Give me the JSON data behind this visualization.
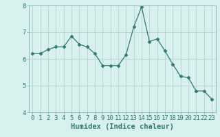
{
  "x": [
    0,
    1,
    2,
    3,
    4,
    5,
    6,
    7,
    8,
    9,
    10,
    11,
    12,
    13,
    14,
    15,
    16,
    17,
    18,
    19,
    20,
    21,
    22,
    23
  ],
  "y": [
    6.2,
    6.2,
    6.35,
    6.45,
    6.45,
    6.85,
    6.55,
    6.45,
    6.2,
    5.75,
    5.75,
    5.75,
    6.15,
    7.2,
    7.95,
    6.65,
    6.75,
    6.3,
    5.8,
    5.35,
    5.3,
    4.8,
    4.8,
    4.5
  ],
  "line_color": "#2d7b6f",
  "marker": "D",
  "marker_size": 2.5,
  "bg_color": "#d8f0ee",
  "grid_color": "#b8d8d4",
  "xlabel": "Humidex (Indice chaleur)",
  "xlim": [
    -0.5,
    23.5
  ],
  "ylim": [
    4,
    8
  ],
  "yticks": [
    4,
    5,
    6,
    7,
    8
  ],
  "xticks": [
    0,
    1,
    2,
    3,
    4,
    5,
    6,
    7,
    8,
    9,
    10,
    11,
    12,
    13,
    14,
    15,
    16,
    17,
    18,
    19,
    20,
    21,
    22,
    23
  ],
  "xlabel_fontsize": 7.5,
  "tick_fontsize": 6.5
}
